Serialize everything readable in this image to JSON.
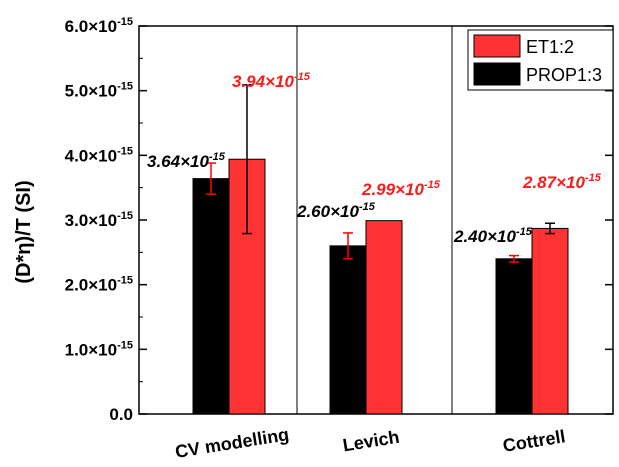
{
  "chart_data": {
    "type": "bar",
    "title": "",
    "xlabel": "",
    "ylabel": "(D*η)/T (SI)",
    "categories": [
      "CV modelling",
      "Levich",
      "Cottrell"
    ],
    "series": [
      {
        "name": "PROP1:3",
        "color": "#000000",
        "errorbar_color": "#ff0000",
        "values": [
          3.64e-15,
          2.6e-15,
          2.4e-15
        ],
        "errors": [
          2.4e-16,
          2e-16,
          5e-17
        ],
        "labels_mantissa": [
          "3.64×10",
          "2.60×10",
          "2.40×10"
        ],
        "labels_exp": [
          "-15",
          "-15",
          "-15"
        ]
      },
      {
        "name": "ET1:2",
        "color": "#ff3333",
        "errorbar_color": "#000000",
        "values": [
          3.94e-15,
          2.99e-15,
          2.87e-15
        ],
        "errors": [
          1.15e-15,
          0,
          8e-17
        ],
        "labels_mantissa": [
          "3.94×10",
          "2.99×10",
          "2.87×10"
        ],
        "labels_exp": [
          "-15",
          "-15",
          "-15"
        ]
      }
    ],
    "ylim": [
      0,
      6e-15
    ],
    "yticks": [
      {
        "value": 0,
        "mantissa": "0.0",
        "exp": ""
      },
      {
        "value": 1e-15,
        "mantissa": "1.0×10",
        "exp": "-15"
      },
      {
        "value": 2e-15,
        "mantissa": "2.0×10",
        "exp": "-15"
      },
      {
        "value": 3e-15,
        "mantissa": "3.0×10",
        "exp": "-15"
      },
      {
        "value": 4e-15,
        "mantissa": "4.0×10",
        "exp": "-15"
      },
      {
        "value": 5e-15,
        "mantissa": "5.0×10",
        "exp": "-15"
      },
      {
        "value": 6e-15,
        "mantissa": "6.0×10",
        "exp": "-15"
      }
    ],
    "grid": false,
    "legend": {
      "position": "top-right",
      "entries": [
        {
          "name": "ET1:2",
          "color": "#ff3333"
        },
        {
          "name": "PROP1:3",
          "color": "#000000"
        }
      ]
    }
  }
}
